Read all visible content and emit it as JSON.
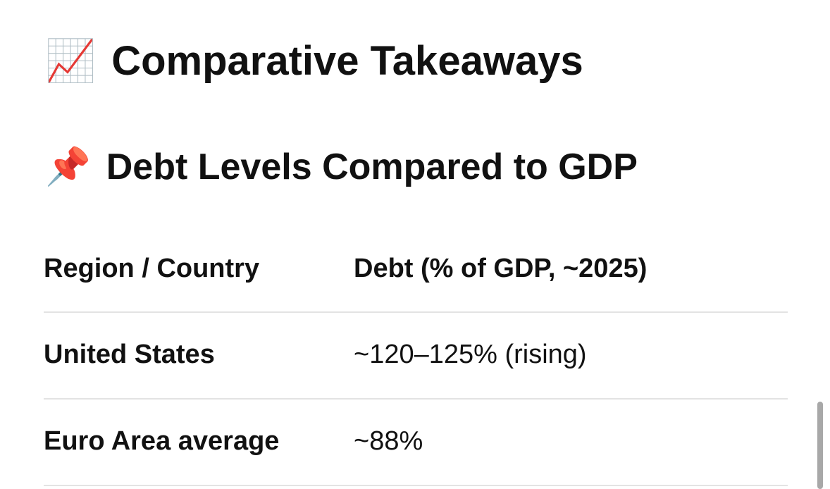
{
  "sections": [
    {
      "icon": "📈",
      "title": "Comparative Takeaways"
    },
    {
      "icon": "📌",
      "title": "Debt Levels Compared to GDP"
    }
  ],
  "table": {
    "header": [
      "Region / Country",
      "Debt (% of GDP, ~2025)"
    ],
    "rows": [
      [
        "United States",
        "~120–125% (rising)"
      ],
      [
        "Euro Area average",
        "~88%"
      ]
    ]
  }
}
